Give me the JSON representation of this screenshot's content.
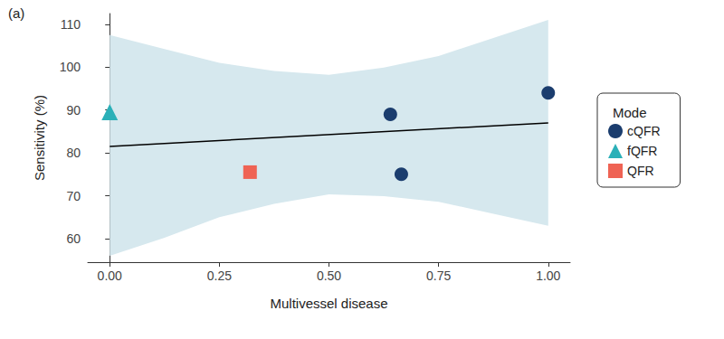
{
  "chart_data": {
    "type": "scatter",
    "title": "(a)",
    "xlabel": "Multivessel disease",
    "ylabel": "Sensitivity (%)",
    "legend_title": "Mode",
    "legend": "right",
    "grid": false,
    "xlim": [
      -0.05,
      1.05
    ],
    "xticks": [
      {
        "value": 0,
        "label": "0.00"
      },
      {
        "value": 0.25,
        "label": "0.25"
      },
      {
        "value": 0.5,
        "label": "0.50"
      },
      {
        "value": 0.75,
        "label": "0.75"
      },
      {
        "value": 1,
        "label": "1.00"
      }
    ],
    "ylim": [
      54.5,
      112.5
    ],
    "yticks": [
      60,
      70,
      80,
      90,
      100,
      110
    ],
    "series": [
      {
        "name": "cQFR",
        "color": "#1b3d6e",
        "marker": "circle",
        "x": [
          0.64,
          0.665,
          1.0
        ],
        "values": [
          89,
          75,
          94
        ]
      },
      {
        "name": "fQFR",
        "color": "#2bb0b8",
        "marker": "triangle",
        "x": [
          0
        ],
        "values": [
          89.5
        ]
      },
      {
        "name": "QFR",
        "color": "#ef6354",
        "marker": "square",
        "x": [
          0.32
        ],
        "values": [
          75.5
        ]
      }
    ],
    "fit": {
      "x": [
        0,
        1
      ],
      "values": [
        81.5,
        87
      ],
      "color": "#000000"
    },
    "band": {
      "x": [
        0,
        0.125,
        0.25,
        0.375,
        0.5,
        0.625,
        0.75,
        0.875,
        1
      ],
      "lower": [
        56,
        60.2,
        65,
        68.1,
        70.3,
        69.9,
        68.6,
        65.8,
        63
      ],
      "upper": [
        107.5,
        104.2,
        101,
        99.1,
        98.2,
        99.9,
        102.6,
        106.8,
        111
      ],
      "color": "#d6e8ee"
    }
  }
}
